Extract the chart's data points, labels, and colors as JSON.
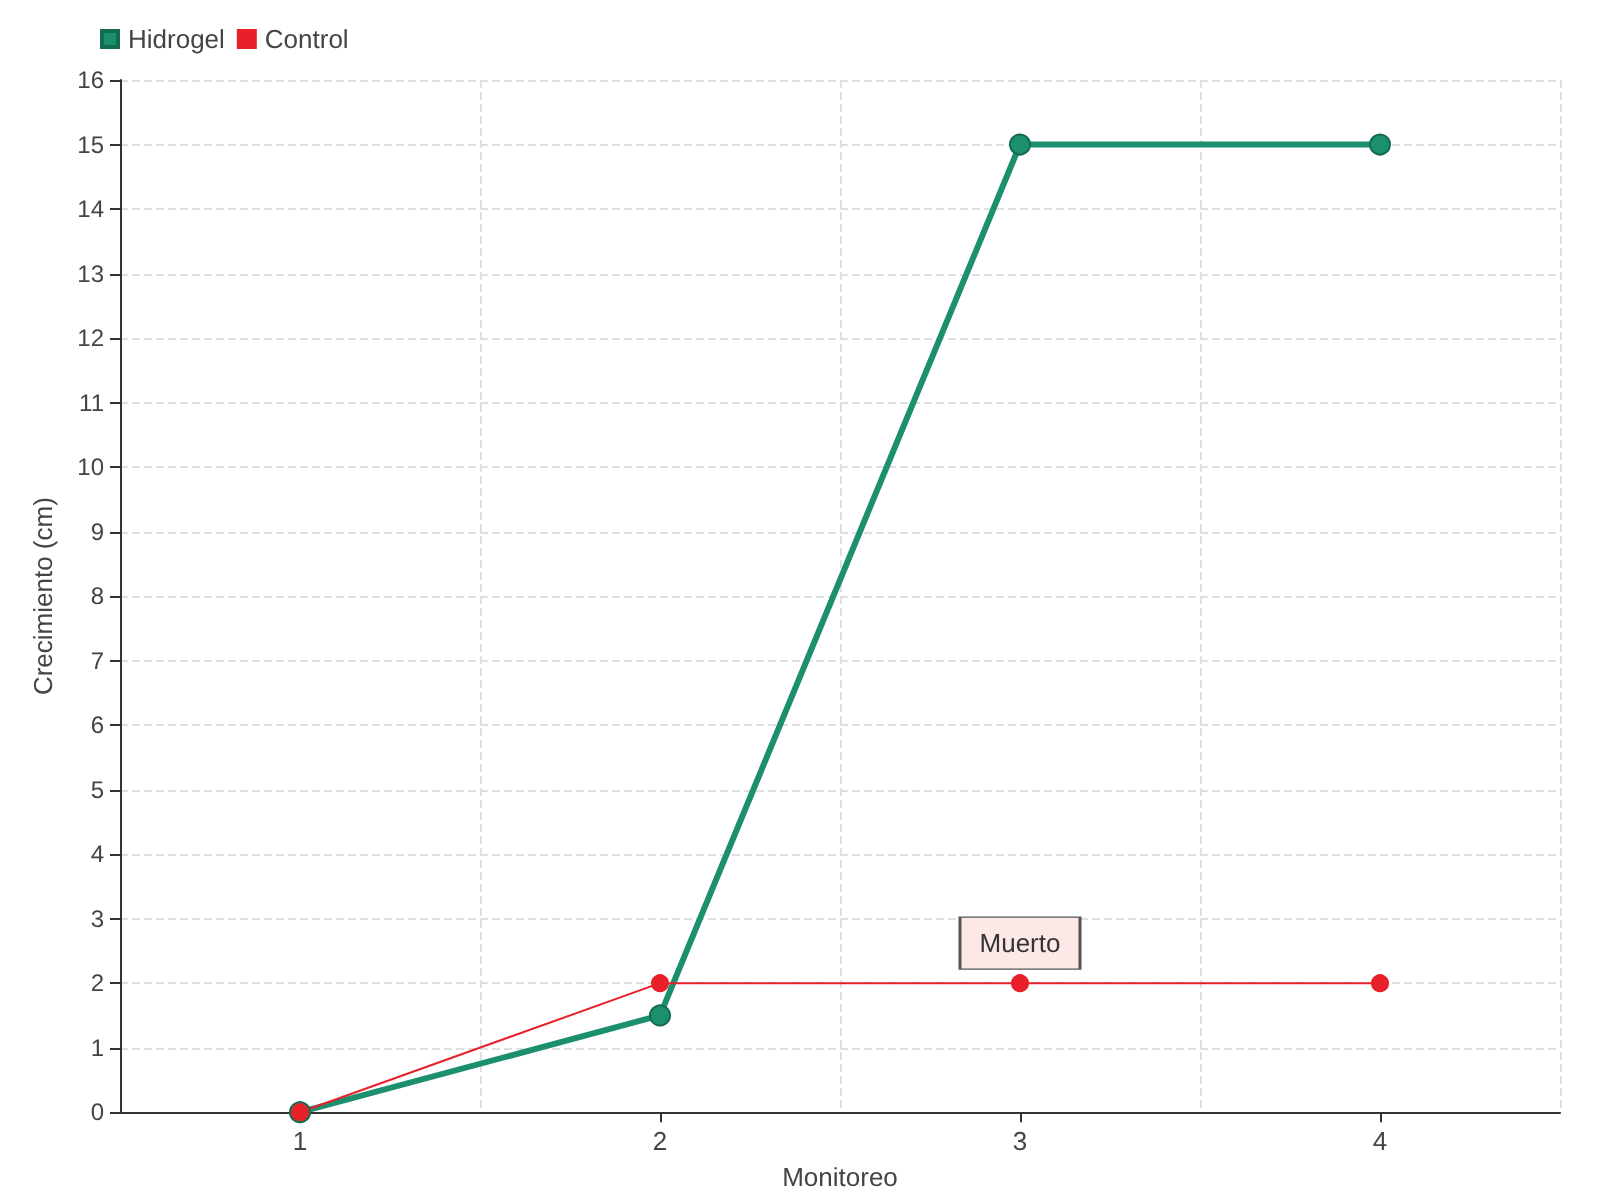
{
  "chart_data": {
    "type": "line",
    "xlabel": "Monitoreo",
    "ylabel": "Crecimiento (cm)",
    "categories": [
      "1",
      "2",
      "3",
      "4"
    ],
    "series": [
      {
        "name": "Hidrogel",
        "color": "#1b8f6e",
        "values": [
          0,
          1.5,
          15,
          15
        ]
      },
      {
        "name": "Control",
        "color": "#e8202a",
        "values": [
          0,
          2,
          2,
          2
        ]
      }
    ],
    "ylim": [
      0,
      16
    ],
    "yticks": [
      0,
      1,
      2,
      3,
      4,
      5,
      6,
      7,
      8,
      9,
      10,
      11,
      12,
      13,
      14,
      15,
      16
    ],
    "grid": true,
    "legend": "top left",
    "marker": "circle",
    "annotations": [
      {
        "text": "Muerto",
        "x": "3",
        "y": 2
      }
    ]
  }
}
